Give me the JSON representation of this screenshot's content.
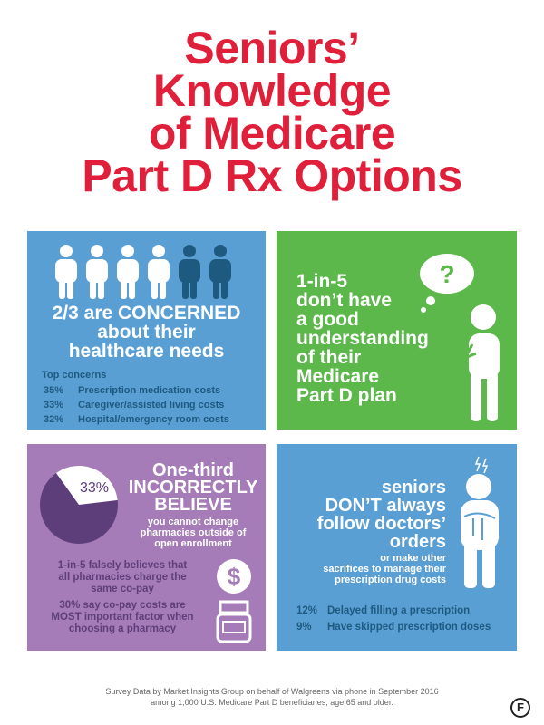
{
  "title": [
    "Seniors’",
    "Knowledge",
    "of Medicare",
    "Part D Rx Options"
  ],
  "colors": {
    "title": "#e0203a",
    "blue": "#5a9fd4",
    "green": "#5cb84a",
    "purple": "#a57cb7"
  },
  "panel1": {
    "people_concerned": 4,
    "people_total": 6,
    "headline": [
      "2/3 are CONCERNED",
      "about their",
      "healthcare needs"
    ],
    "subheading": "Top concerns",
    "concerns": [
      {
        "pct": "35%",
        "label": "Prescription medication costs"
      },
      {
        "pct": "33%",
        "label": "Caregiver/assisted living costs"
      },
      {
        "pct": "32%",
        "label": "Hospital/emergency room costs"
      }
    ]
  },
  "panel2": {
    "icon": "thinking-person-question-icon",
    "headline": [
      "1-in-5",
      "don’t have",
      "a good",
      "understanding",
      "of their",
      "Medicare",
      "Part D plan"
    ]
  },
  "panel3": {
    "pie_value": 33,
    "pie_label": "33%",
    "headline": [
      "One-third",
      "INCORRECTLY",
      "BELIEVE"
    ],
    "sub": [
      "you cannot change",
      "pharmacies outside of",
      "open enrollment"
    ],
    "fact1": [
      "1-in-5 falsely believes that",
      "all pharmacies charge the",
      "same co-pay"
    ],
    "fact2": [
      "30% say co-pay costs are",
      "MOST important factor when",
      "choosing a pharmacy"
    ]
  },
  "panel4": {
    "headline": [
      "seniors",
      "DON’T always",
      "follow doctors’",
      "orders"
    ],
    "sub": [
      "or make other",
      "sacrifices to manage their",
      "prescription drug costs"
    ],
    "stats": [
      {
        "pct": "12%",
        "label": "Delayed filling a prescription"
      },
      {
        "pct": "9%",
        "label": "Have skipped prescription doses"
      }
    ]
  },
  "footer": [
    "Survey Data by Market Insights Group on behalf of Walgreens via phone in September 2016",
    "among 1,000 U.S. Medicare Part D beneficiaries, age 65 and older."
  ],
  "logo": "F"
}
